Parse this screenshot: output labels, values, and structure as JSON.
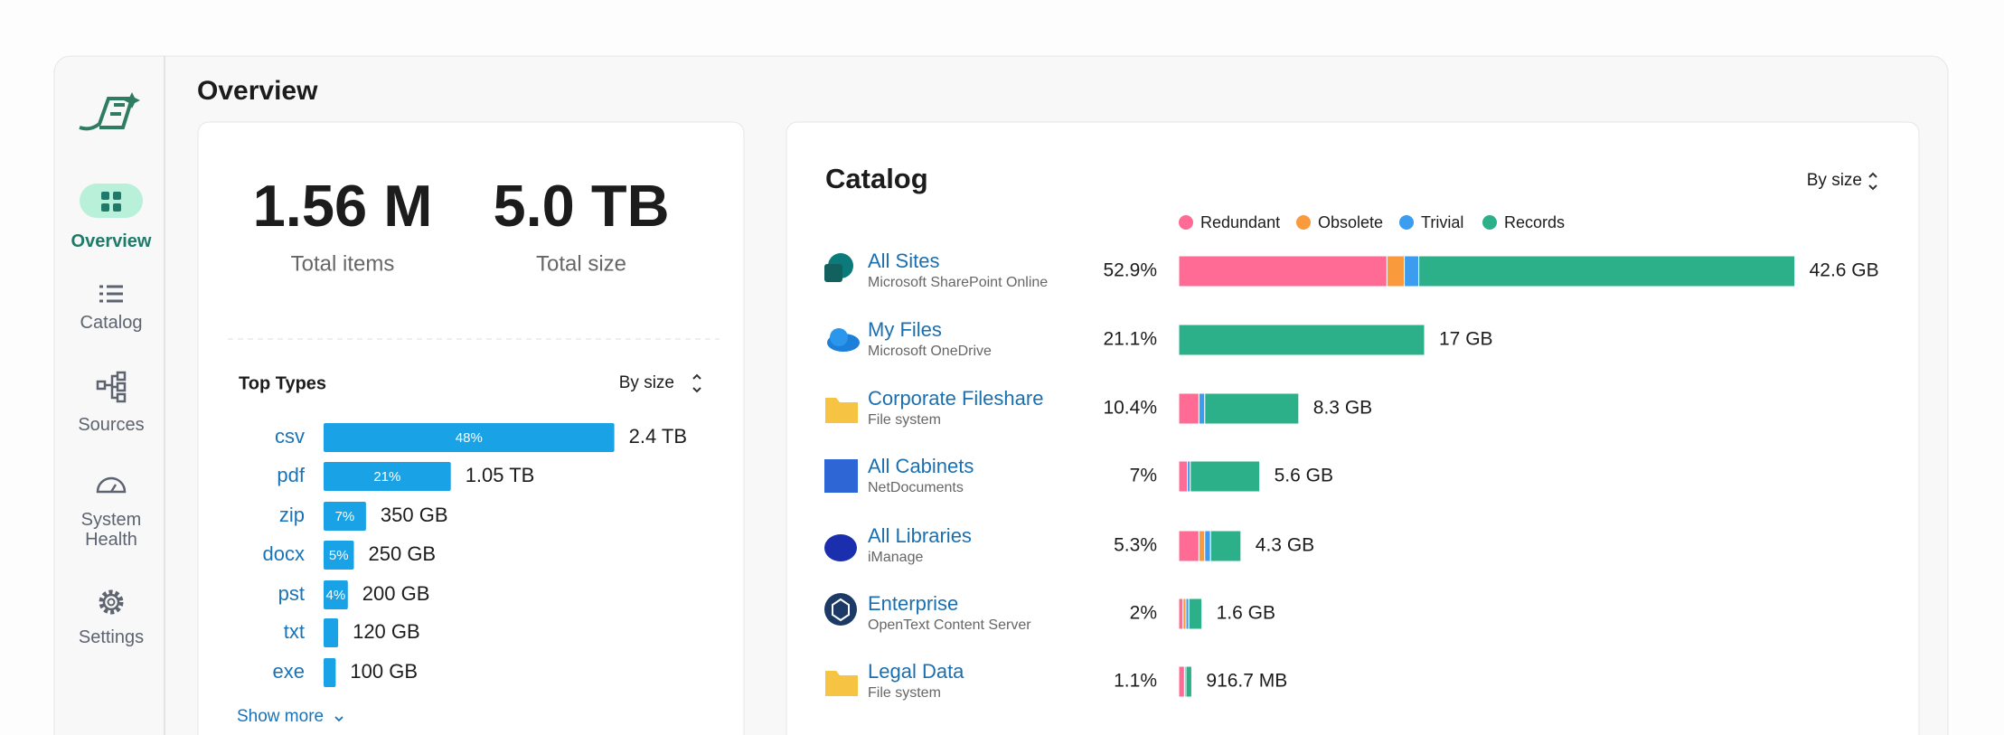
{
  "header": {
    "title": "Overview"
  },
  "sidebar": {
    "nav": [
      "Overview",
      "Catalog",
      "Sources",
      "System Health",
      "Settings"
    ]
  },
  "summary": [
    {
      "value": "1.56 M",
      "label": "Total items"
    },
    {
      "value": "5.0 TB",
      "label": "Total size"
    }
  ],
  "top_types": {
    "title": "Top Types",
    "sort": "By size",
    "categories": [
      "csv",
      "pdf",
      "zip",
      "docx",
      "pst",
      "txt",
      "exe"
    ],
    "values": [
      48,
      21,
      7,
      5,
      4,
      2.4,
      2
    ],
    "value_labels": [
      "48%",
      "21%",
      "7%",
      "5%",
      "4%",
      null,
      null
    ],
    "sizes": [
      "2.4 TB",
      "1.05 TB",
      "350 GB",
      "250 GB",
      "200 GB",
      "120 GB",
      "100 GB"
    ],
    "color": "#19a3e6",
    "show_more": "Show more"
  },
  "catalog": {
    "title": "Catalog",
    "sort": "By size",
    "rows": [
      {
        "name": "All Sites",
        "source": "Microsoft SharePoint Online",
        "share": "52.9%",
        "size": "42.6 GB"
      },
      {
        "name": "My Files",
        "source": "Microsoft OneDrive",
        "share": "21.1%",
        "size": "17 GB"
      },
      {
        "name": "Corporate Fileshare",
        "source": "File system",
        "share": "10.4%",
        "size": "8.3 GB"
      },
      {
        "name": "All Cabinets",
        "source": "NetDocuments",
        "share": "7%",
        "size": "5.6 GB"
      },
      {
        "name": "All Libraries",
        "source": "iManage",
        "share": "5.3%",
        "size": "4.3 GB"
      },
      {
        "name": "Enterprise",
        "source": "OpenText Content Server",
        "share": "2%",
        "size": "1.6 GB"
      },
      {
        "name": "Legal Data",
        "source": "File system",
        "share": "1.1%",
        "size": "916.7 MB"
      }
    ],
    "series": [
      {
        "name": "Redundant",
        "color": "#ff6b94",
        "values": [
          14.4,
          0,
          1.4,
          0.6,
          1.4,
          0.3,
          0.4
        ]
      },
      {
        "name": "Obsolete",
        "color": "#f99a3c",
        "values": [
          1.2,
          0,
          0,
          0,
          0.4,
          0.2,
          0
        ]
      },
      {
        "name": "Trivial",
        "color": "#3b9cf0",
        "values": [
          1.0,
          0,
          0.4,
          0.2,
          0.4,
          0.2,
          0.1
        ]
      },
      {
        "name": "Records",
        "color": "#2bb089",
        "values": [
          26.0,
          17,
          6.5,
          4.8,
          2.1,
          0.9,
          0.4
        ]
      }
    ]
  }
}
